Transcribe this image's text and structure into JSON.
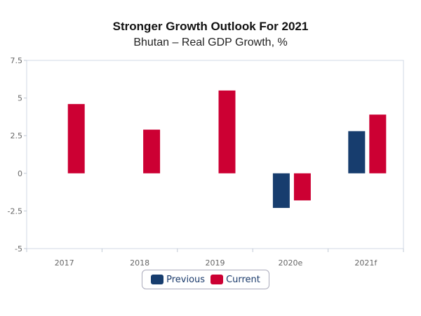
{
  "chart_data": {
    "type": "bar",
    "title": "Stronger Growth Outlook For 2021",
    "subtitle": "Bhutan – Real GDP Growth, %",
    "categories": [
      "2017",
      "2018",
      "2019",
      "2020e",
      "2021f"
    ],
    "series": [
      {
        "name": "Previous",
        "color": "#173d6e",
        "values": [
          null,
          null,
          null,
          -2.3,
          2.8
        ]
      },
      {
        "name": "Current",
        "color": "#cc0033",
        "values": [
          4.6,
          2.9,
          5.5,
          -1.8,
          3.9
        ]
      }
    ],
    "ylim": [
      -5,
      7.5
    ],
    "yticks": [
      "7.5",
      "5",
      "2.5",
      "0",
      "-2.5",
      "-5"
    ],
    "grid": false,
    "legend": "bottom"
  }
}
